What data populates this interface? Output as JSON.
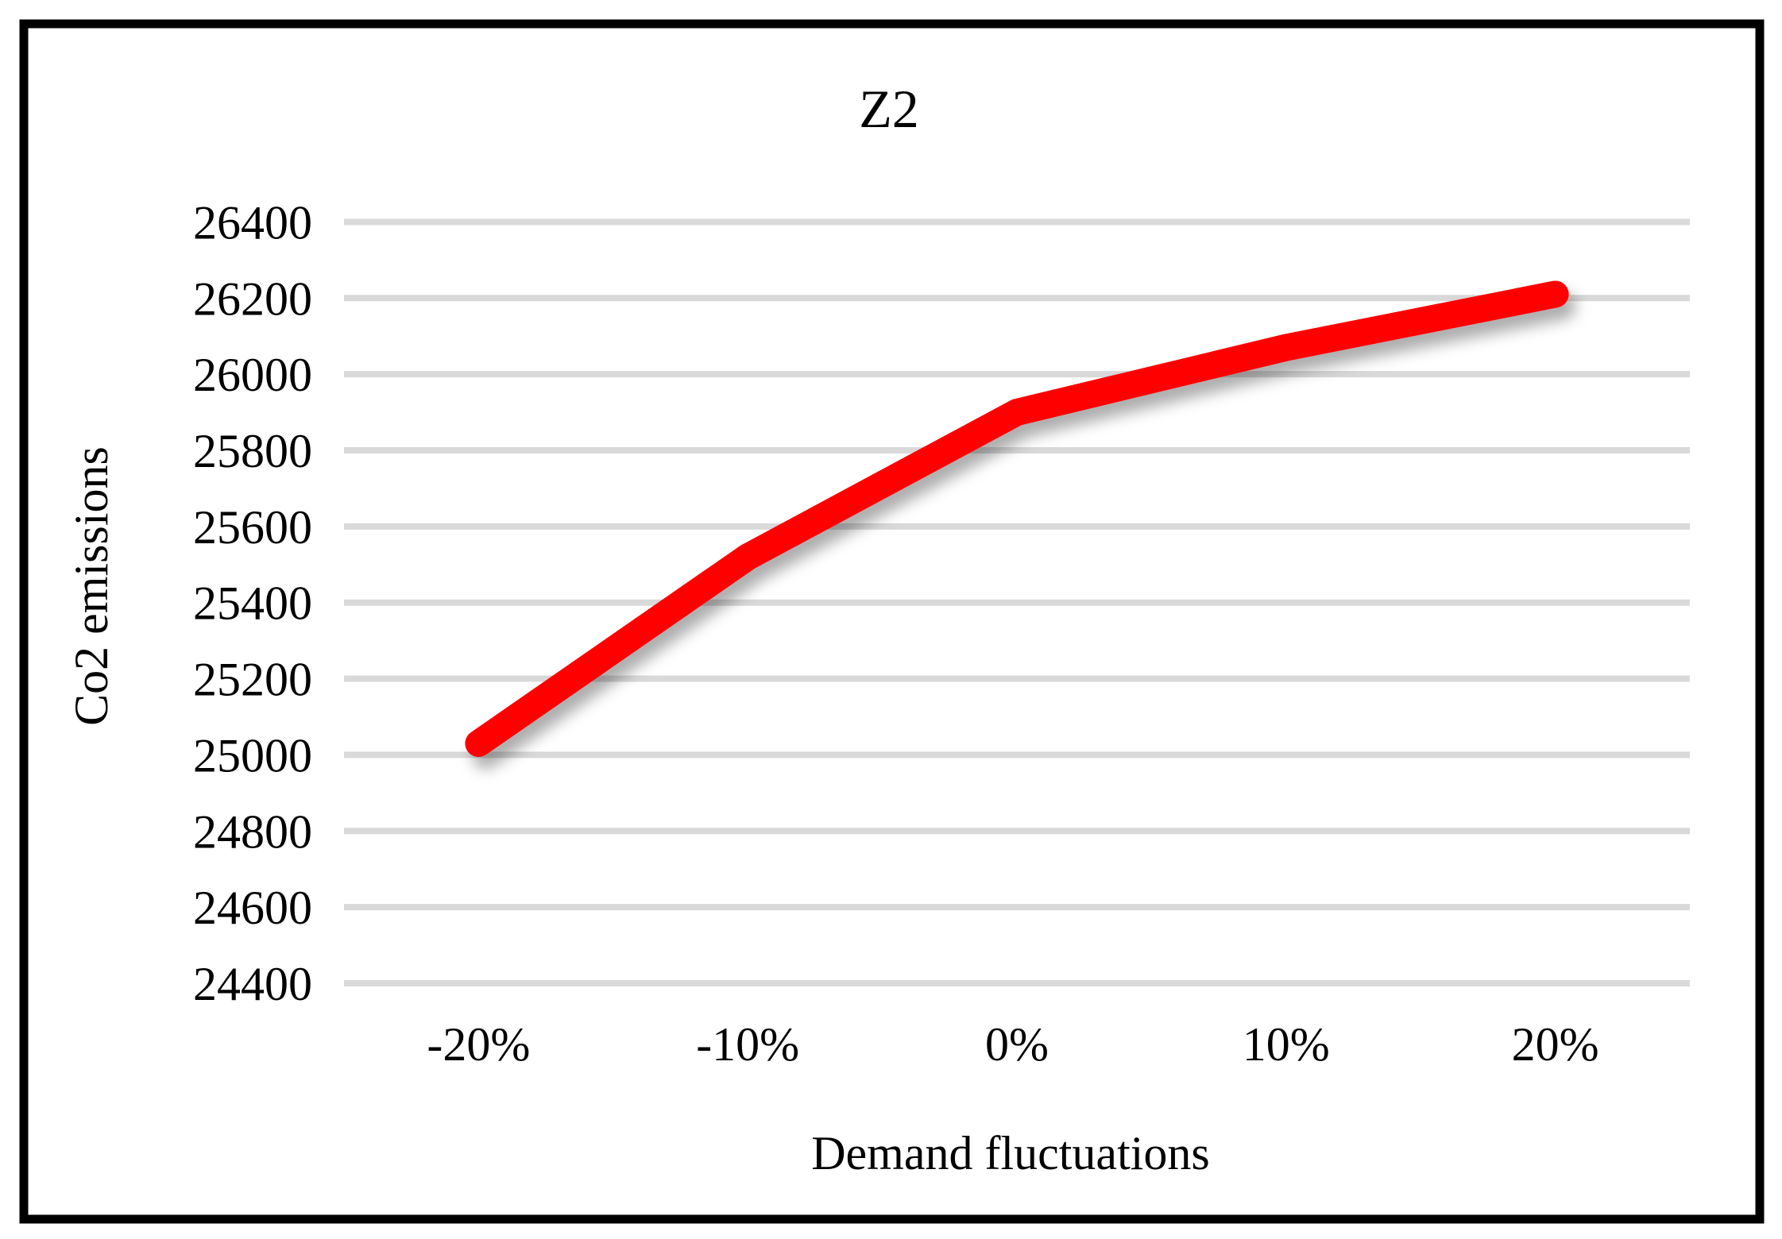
{
  "chart_data": {
    "type": "line",
    "title": "Z2",
    "xlabel": "Demand fluctuations",
    "ylabel": "Co2 emissions",
    "categories": [
      "-20%",
      "-10%",
      "0%",
      "10%",
      "20%"
    ],
    "series": [
      {
        "name": "Z2",
        "color": "#FF0000",
        "values": [
          25030,
          25520,
          25900,
          26070,
          26210
        ]
      }
    ],
    "ylim": [
      24400,
      26400
    ],
    "ytick_step": 200,
    "yticks": [
      24400,
      24600,
      24800,
      25000,
      25200,
      25400,
      25600,
      25800,
      26000,
      26200,
      26400
    ],
    "grid": true,
    "legend_position": "none",
    "gridline_color": "#D9D9D9",
    "background_color": "#FFFFFF",
    "frame_color": "#000000"
  }
}
